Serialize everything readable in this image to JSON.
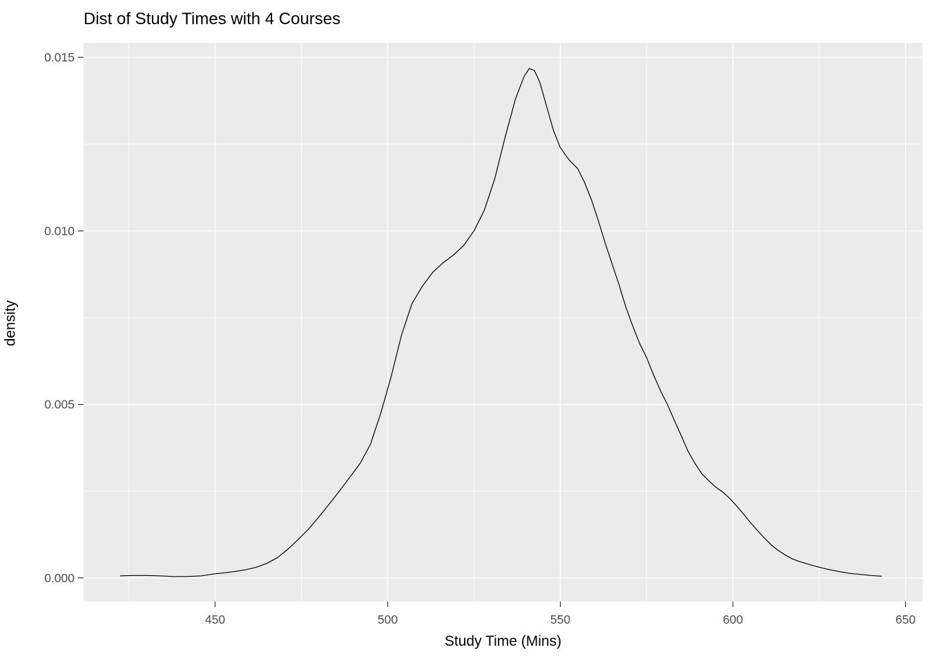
{
  "page": {
    "title": "Dist of Study Times with 4 Courses"
  },
  "chart_data": {
    "type": "line",
    "subtype": "density-curve",
    "title": "Dist of Study Times with 4 Courses",
    "xlabel": "Study Time (Mins)",
    "ylabel": "density",
    "legend_position": "none",
    "grid": "major-and-minor",
    "xlim": [
      411.9,
      654.9
    ],
    "ylim": [
      -0.00068,
      0.01542
    ],
    "x_ticks": [
      {
        "value": 450,
        "label": "450"
      },
      {
        "value": 500,
        "label": "500"
      },
      {
        "value": 550,
        "label": "550"
      },
      {
        "value": 600,
        "label": "600"
      },
      {
        "value": 650,
        "label": "650"
      }
    ],
    "x_minor_ticks": [
      425,
      475,
      525,
      575,
      625
    ],
    "y_ticks": [
      {
        "value": 0.0,
        "label": "0.000"
      },
      {
        "value": 0.005,
        "label": "0.005"
      },
      {
        "value": 0.01,
        "label": "0.010"
      },
      {
        "value": 0.015,
        "label": "0.015"
      }
    ],
    "y_minor_ticks": [
      0.0025,
      0.0075,
      0.0125
    ],
    "colors": {
      "page_background": "#FFFFFF",
      "panel_background": "#EBEBEB",
      "gridline": "#FFFFFF",
      "curve": "#000000",
      "tick_mark": "#333333",
      "tick_label": "#4D4D4D",
      "axis_title": "#000000",
      "title": "#000000"
    },
    "series": [
      {
        "name": "density",
        "peak": {
          "x": 541,
          "y": 0.0147
        },
        "points": [
          [
            422.6,
            6e-05
          ],
          [
            426,
            7e-05
          ],
          [
            430,
            7e-05
          ],
          [
            434,
            6e-05
          ],
          [
            438,
            4e-05
          ],
          [
            442,
            4e-05
          ],
          [
            446,
            6e-05
          ],
          [
            450,
            0.00012
          ],
          [
            453,
            0.00015
          ],
          [
            456,
            0.00019
          ],
          [
            459,
            0.00024
          ],
          [
            462,
            0.00031
          ],
          [
            465,
            0.00042
          ],
          [
            468,
            0.00058
          ],
          [
            471,
            0.00082
          ],
          [
            474,
            0.0011
          ],
          [
            477,
            0.0014
          ],
          [
            480,
            0.00175
          ],
          [
            483,
            0.00212
          ],
          [
            486,
            0.0025
          ],
          [
            489,
            0.0029
          ],
          [
            492,
            0.0033
          ],
          [
            495,
            0.00385
          ],
          [
            498,
            0.00475
          ],
          [
            501,
            0.0058
          ],
          [
            504,
            0.007
          ],
          [
            507,
            0.0079
          ],
          [
            510,
            0.0084
          ],
          [
            513,
            0.0088
          ],
          [
            516,
            0.00908
          ],
          [
            519,
            0.0093
          ],
          [
            522,
            0.00958
          ],
          [
            525,
            0.01
          ],
          [
            528,
            0.0106
          ],
          [
            531,
            0.0115
          ],
          [
            534,
            0.0127
          ],
          [
            537,
            0.0138
          ],
          [
            539.5,
            0.01445
          ],
          [
            541,
            0.01468
          ],
          [
            542.5,
            0.01462
          ],
          [
            544,
            0.0143
          ],
          [
            546,
            0.0136
          ],
          [
            548,
            0.0129
          ],
          [
            550,
            0.0124
          ],
          [
            552.5,
            0.01205
          ],
          [
            555,
            0.0118
          ],
          [
            557,
            0.0114
          ],
          [
            559,
            0.0109
          ],
          [
            561,
            0.0103
          ],
          [
            563,
            0.00965
          ],
          [
            565,
            0.00905
          ],
          [
            567,
            0.00845
          ],
          [
            569,
            0.0078
          ],
          [
            571,
            0.00725
          ],
          [
            573,
            0.00675
          ],
          [
            575,
            0.00635
          ],
          [
            577,
            0.00585
          ],
          [
            579,
            0.0054
          ],
          [
            581,
            0.005
          ],
          [
            583,
            0.00455
          ],
          [
            585,
            0.0041
          ],
          [
            587,
            0.00365
          ],
          [
            589,
            0.0033
          ],
          [
            591,
            0.003
          ],
          [
            593,
            0.0028
          ],
          [
            595,
            0.00262
          ],
          [
            597,
            0.00248
          ],
          [
            599,
            0.0023
          ],
          [
            601,
            0.00208
          ],
          [
            603,
            0.00185
          ],
          [
            605,
            0.0016
          ],
          [
            607,
            0.00138
          ],
          [
            609,
            0.00116
          ],
          [
            611,
            0.00096
          ],
          [
            613,
            0.0008
          ],
          [
            615,
            0.00067
          ],
          [
            617,
            0.00056
          ],
          [
            619,
            0.00048
          ],
          [
            621,
            0.00042
          ],
          [
            623,
            0.00036
          ],
          [
            625,
            0.00031
          ],
          [
            627,
            0.00026
          ],
          [
            629,
            0.00022
          ],
          [
            631,
            0.00018
          ],
          [
            634,
            0.00013
          ],
          [
            637,
            0.0001
          ],
          [
            640,
            7e-05
          ],
          [
            643,
            5e-05
          ]
        ]
      }
    ]
  }
}
